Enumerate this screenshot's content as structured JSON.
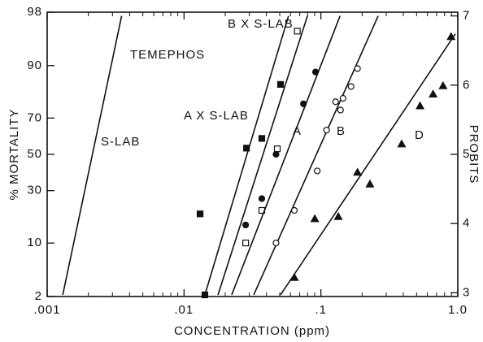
{
  "chart_data": {
    "type": "scatter",
    "title": "TEMEPHOS",
    "xlabel": "CONCENTRATION (ppm)",
    "ylabel": "% MORTALITY",
    "y2label": "PROBITS",
    "xscale": "log",
    "xlim": [
      0.001,
      1.0
    ],
    "xticks": [
      {
        "value": 0.001,
        "label": ".001"
      },
      {
        "value": 0.01,
        "label": ".01"
      },
      {
        "value": 0.1,
        "label": ".1"
      },
      {
        "value": 1.0,
        "label": "1.0"
      }
    ],
    "yscale": "probit",
    "ylim": [
      2,
      98
    ],
    "yticks": [
      2,
      10,
      30,
      50,
      70,
      90,
      98
    ],
    "y2lim": [
      3,
      7
    ],
    "y2ticks": [
      3,
      4,
      5,
      6,
      7
    ],
    "color": "#111111",
    "series": [
      {
        "name": "S-LAB",
        "axis": "y2",
        "x": [],
        "values": [],
        "marker": "none",
        "filled": false,
        "line_x": [
          0.0013,
          0.0035
        ],
        "line_values": [
          2.97,
          7.0
        ]
      },
      {
        "name": "A X S-LAB",
        "axis": "y2",
        "marker": "square",
        "filled": true,
        "x": [
          0.0142,
          0.0131,
          0.0286,
          0.037,
          0.0507
        ],
        "values": [
          2.97,
          4.14,
          5.09,
          5.23,
          6.01
        ],
        "line_x": [
          0.0142,
          0.058
        ],
        "line_values": [
          2.97,
          7.0
        ]
      },
      {
        "name": "B X S-LAB",
        "axis": "y2",
        "marker": "square",
        "filled": false,
        "x": [
          0.0282,
          0.037,
          0.048,
          0.0672
        ],
        "values": [
          3.72,
          4.19,
          5.08,
          6.78
        ],
        "line_x": [
          0.0177,
          0.0797
        ],
        "line_values": [
          2.97,
          7.0
        ]
      },
      {
        "name": "A",
        "axis": "y2",
        "marker": "circle",
        "filled": true,
        "x": [
          0.0282,
          0.037,
          0.047,
          0.0745,
          0.0913
        ],
        "values": [
          3.98,
          4.36,
          5.0,
          5.73,
          6.19
        ],
        "line_x": [
          0.0223,
          0.138
        ],
        "line_values": [
          2.97,
          7.0
        ]
      },
      {
        "name": "B",
        "axis": "y2",
        "marker": "circle",
        "filled": false,
        "x": [
          0.047,
          0.064,
          0.094,
          0.11,
          0.128,
          0.139,
          0.145,
          0.166,
          0.185
        ],
        "values": [
          3.72,
          4.19,
          4.76,
          5.35,
          5.76,
          5.64,
          5.81,
          5.98,
          6.24
        ],
        "line_x": [
          0.0323,
          0.262
        ],
        "line_values": [
          2.97,
          7.0
        ]
      },
      {
        "name": "D",
        "axis": "y2",
        "marker": "triangle",
        "filled": true,
        "x": [
          0.064,
          0.0902,
          0.134,
          0.185,
          0.228,
          0.389,
          0.53,
          0.66,
          0.78,
          0.893
        ],
        "values": [
          3.22,
          4.07,
          4.1,
          4.74,
          4.57,
          5.15,
          5.7,
          5.87,
          5.99,
          6.7
        ],
        "line_x": [
          0.0507,
          0.96
        ],
        "line_values": [
          2.97,
          6.74
        ]
      }
    ]
  }
}
